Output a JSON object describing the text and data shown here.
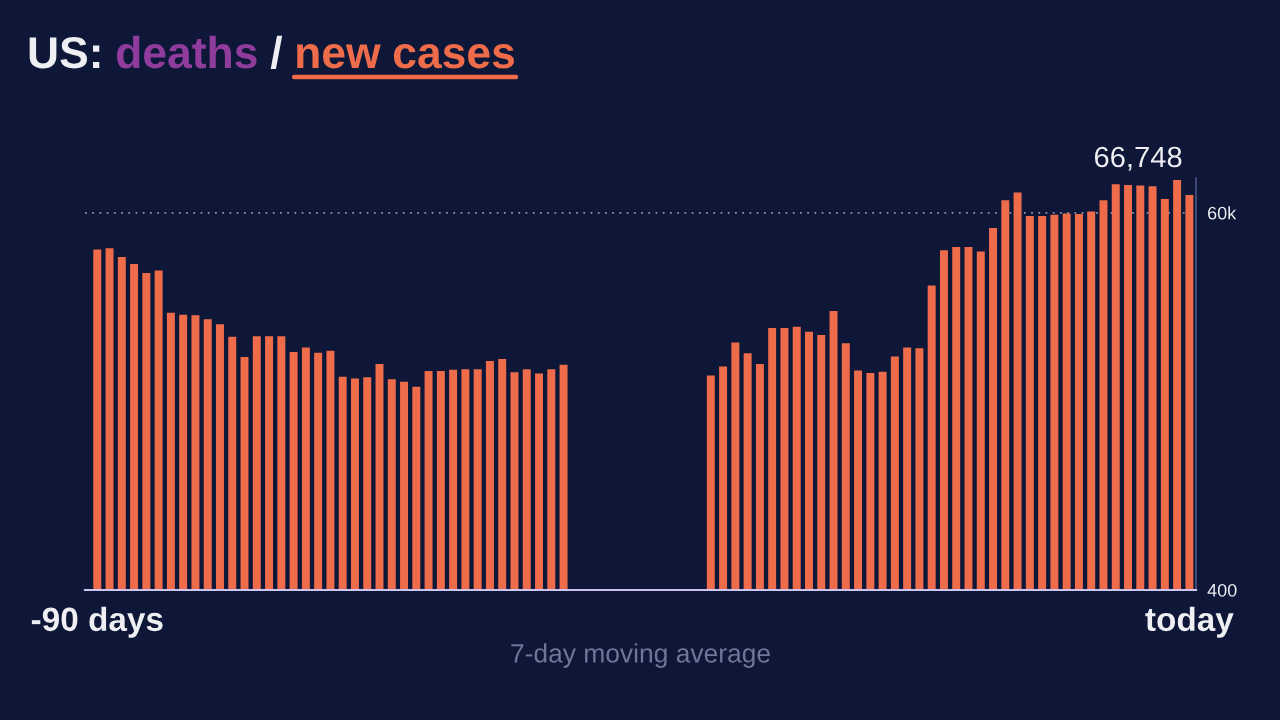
{
  "chart_data": {
    "type": "bar",
    "title": "US: deaths / new cases",
    "xlabel": "7-day moving average",
    "categories": [
      "-90 days",
      null,
      null,
      null,
      null,
      null,
      null,
      null,
      null,
      null,
      null,
      null,
      null,
      null,
      null,
      null,
      null,
      null,
      null,
      null,
      null,
      null,
      null,
      null,
      null,
      null,
      null,
      null,
      null,
      null,
      null,
      null,
      null,
      null,
      null,
      null,
      null,
      null,
      null,
      null,
      null,
      null,
      null,
      null,
      null,
      null,
      null,
      null,
      null,
      null,
      null,
      null,
      null,
      null,
      null,
      null,
      null,
      null,
      null,
      null,
      null,
      null,
      null,
      null,
      null,
      null,
      null,
      null,
      null,
      null,
      null,
      null,
      null,
      null,
      null,
      null,
      null,
      null,
      null,
      null,
      null,
      null,
      null,
      null,
      null,
      null,
      null,
      null,
      null,
      "today"
    ],
    "values": [
      54200,
      54400,
      53000,
      51900,
      50500,
      50900,
      44200,
      43900,
      43800,
      43200,
      42400,
      40400,
      37200,
      40500,
      40500,
      40500,
      38000,
      38700,
      37900,
      38200,
      34100,
      33800,
      34000,
      36100,
      33700,
      33300,
      32500,
      35000,
      35000,
      35200,
      35300,
      35300,
      36600,
      36900,
      34800,
      35300,
      34600,
      35300,
      36000,
      null,
      null,
      null,
      null,
      null,
      null,
      null,
      null,
      null,
      null,
      null,
      34300,
      35700,
      39500,
      37800,
      36100,
      41800,
      41800,
      42000,
      41200,
      40700,
      44500,
      39400,
      35100,
      34700,
      34900,
      37300,
      38700,
      38600,
      48500,
      54100,
      54600,
      54600,
      53900,
      57600,
      62000,
      63200,
      59500,
      59500,
      59700,
      59900,
      59800,
      60200,
      62000,
      64500,
      64400,
      64300,
      64200,
      62200,
      65200,
      62800
    ],
    "color": "#ef6c4a",
    "ylim": [
      400,
      65500
    ],
    "yticks": [
      400,
      {
        "value": 60000,
        "label": "60k"
      }
    ],
    "grid": "y",
    "annotations": [
      "66,748"
    ]
  }
}
